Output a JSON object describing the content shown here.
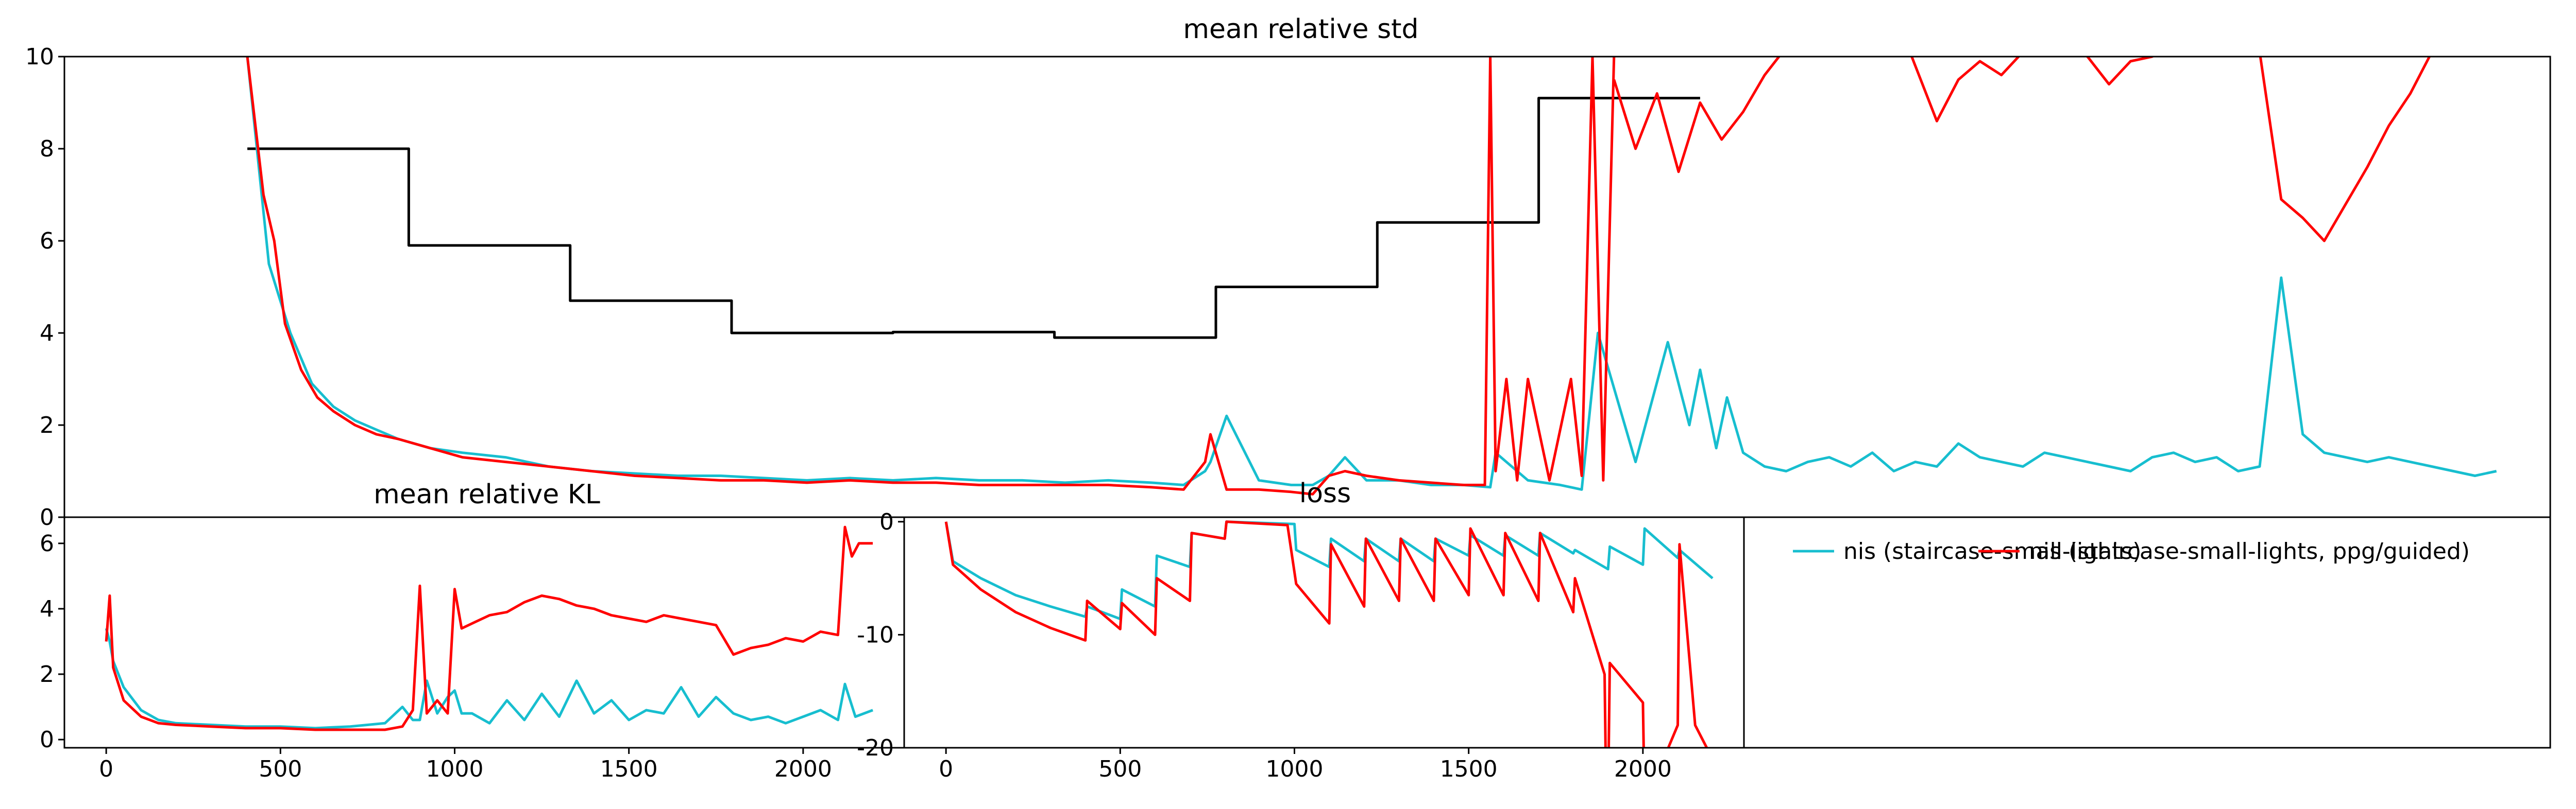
{
  "chart_data": [
    {
      "id": "top",
      "type": "line",
      "title": "mean relative std",
      "xlim": [
        -120,
        4500
      ],
      "ylim": [
        0,
        10
      ],
      "yticks": [
        0,
        2,
        4,
        6,
        8,
        10
      ],
      "xticks": [],
      "series": [
        {
          "color": "#000000",
          "step": true,
          "x": [
            220,
            520,
            520,
            820,
            820,
            1120,
            1120,
            1420,
            1420,
            1720,
            1720,
            2020,
            2020,
            2320,
            2320,
            2620,
            2620,
            2920
          ],
          "y": [
            8.0,
            8.0,
            5.9,
            5.9,
            4.7,
            4.7,
            4.0,
            4.0,
            4.02,
            4.02,
            3.9,
            3.9,
            5.0,
            5.0,
            6.4,
            6.4,
            9.1,
            9.1
          ]
        },
        {
          "color": "#17becf",
          "x": [
            220,
            260,
            300,
            340,
            380,
            420,
            460,
            500,
            560,
            620,
            700,
            780,
            860,
            940,
            1020,
            1100,
            1180,
            1260,
            1340,
            1420,
            1500,
            1580,
            1660,
            1740,
            1820,
            1900,
            1960,
            2000,
            2010,
            2040,
            2100,
            2160,
            2200,
            2230,
            2260,
            2300,
            2360,
            2420,
            2480,
            2530,
            2540,
            2600,
            2660,
            2700,
            2730,
            2800,
            2860,
            2900,
            2920,
            2950,
            2970,
            3000,
            3040,
            3080,
            3120,
            3160,
            3200,
            3240,
            3280,
            3320,
            3360,
            3400,
            3440,
            3480,
            3520,
            3560,
            3600,
            3640,
            3680,
            3720,
            3760,
            3800,
            3840,
            3880,
            3920,
            3960,
            4000,
            4040,
            4080,
            4120,
            4160,
            4200,
            4240,
            4280,
            4320,
            4360,
            4400
          ],
          "y": [
            10,
            5.5,
            4.0,
            2.9,
            2.4,
            2.1,
            1.9,
            1.7,
            1.5,
            1.4,
            1.3,
            1.1,
            1.0,
            0.95,
            0.9,
            0.9,
            0.85,
            0.8,
            0.85,
            0.8,
            0.85,
            0.8,
            0.8,
            0.75,
            0.8,
            0.75,
            0.7,
            1.0,
            1.2,
            2.2,
            0.8,
            0.7,
            0.7,
            0.9,
            1.3,
            0.8,
            0.8,
            0.7,
            0.7,
            0.65,
            1.4,
            0.8,
            0.7,
            0.6,
            4.0,
            1.2,
            3.8,
            2.0,
            3.2,
            1.5,
            2.6,
            1.4,
            1.1,
            1.0,
            1.2,
            1.3,
            1.1,
            1.4,
            1.0,
            1.2,
            1.1,
            1.6,
            1.3,
            1.2,
            1.1,
            1.4,
            1.3,
            1.2,
            1.1,
            1.0,
            1.3,
            1.4,
            1.2,
            1.3,
            1.0,
            1.1,
            5.2,
            1.8,
            1.4,
            1.3,
            1.2,
            1.3,
            1.2,
            1.1,
            1.0,
            0.9,
            1.0
          ]
        },
        {
          "color": "#ff0000",
          "x": [
            220,
            250,
            270,
            290,
            320,
            350,
            380,
            420,
            460,
            500,
            560,
            620,
            700,
            780,
            860,
            940,
            1020,
            1100,
            1180,
            1260,
            1340,
            1420,
            1500,
            1580,
            1660,
            1740,
            1820,
            1900,
            1960,
            2000,
            2010,
            2040,
            2100,
            2160,
            2200,
            2230,
            2260,
            2300,
            2360,
            2420,
            2480,
            2520,
            2530,
            2540,
            2560,
            2580,
            2600,
            2640,
            2680,
            2700,
            2720,
            2740,
            2760
          ],
          "y": [
            10,
            7.0,
            6.0,
            4.2,
            3.2,
            2.6,
            2.3,
            2.0,
            1.8,
            1.7,
            1.5,
            1.3,
            1.2,
            1.1,
            1.0,
            0.9,
            0.85,
            0.8,
            0.8,
            0.75,
            0.8,
            0.75,
            0.75,
            0.7,
            0.7,
            0.7,
            0.7,
            0.65,
            0.6,
            1.2,
            1.8,
            0.6,
            0.6,
            0.55,
            0.5,
            0.9,
            1.0,
            0.9,
            0.8,
            0.75,
            0.7,
            0.7,
            10,
            1.0,
            3.0,
            0.8,
            3.0,
            0.8,
            3.0,
            0.9,
            10,
            0.8,
            10
          ]
        },
        {
          "color": "#ff0000",
          "x": [
            2760,
            2800,
            2840,
            2880,
            2920,
            2960,
            3000,
            3040,
            3080,
            3120,
            3160,
            3200,
            3240,
            3280,
            3320,
            3360,
            3400,
            3440,
            3480,
            3520,
            3560,
            3600,
            3640,
            3680,
            3720,
            3760,
            3800,
            3840,
            3880,
            3920,
            3960,
            4000,
            4040,
            4080,
            4120,
            4160,
            4200,
            4240,
            4280
          ],
          "y": [
            9.5,
            8.0,
            9.2,
            7.5,
            9.0,
            8.2,
            8.8,
            9.6,
            10.2,
            10.4,
            10.6,
            10.8,
            11.0,
            11.0,
            9.8,
            8.6,
            9.5,
            9.9,
            9.6,
            10.1,
            10.3,
            10.2,
            10.0,
            9.4,
            9.9,
            10.0,
            10.2,
            10.4,
            10.6,
            10.6,
            10.1,
            6.9,
            6.5,
            6.0,
            6.8,
            7.6,
            8.5,
            9.2,
            10.1
          ]
        }
      ]
    },
    {
      "id": "kl",
      "type": "line",
      "title": "mean relative KL",
      "xlim": [
        -120,
        2290
      ],
      "ylim": [
        -0.25,
        6.8
      ],
      "yticks": [
        0,
        2,
        4,
        6
      ],
      "xticks": [
        0,
        500,
        1000,
        1500,
        2000
      ],
      "series": [
        {
          "color": "#17becf",
          "x": [
            0,
            10,
            20,
            50,
            100,
            150,
            200,
            300,
            400,
            500,
            600,
            700,
            800,
            850,
            880,
            900,
            920,
            950,
            980,
            1000,
            1020,
            1050,
            1100,
            1150,
            1200,
            1250,
            1300,
            1350,
            1400,
            1450,
            1500,
            1550,
            1600,
            1650,
            1700,
            1750,
            1800,
            1850,
            1900,
            1950,
            2000,
            2050,
            2100,
            2120,
            2150,
            2200
          ],
          "y": [
            3.4,
            3.0,
            2.4,
            1.6,
            0.9,
            0.6,
            0.5,
            0.45,
            0.4,
            0.4,
            0.35,
            0.4,
            0.5,
            1.0,
            0.6,
            0.6,
            1.8,
            0.8,
            1.3,
            1.5,
            0.8,
            0.8,
            0.5,
            1.2,
            0.6,
            1.4,
            0.7,
            1.8,
            0.8,
            1.2,
            0.6,
            0.9,
            0.8,
            1.6,
            0.7,
            1.3,
            0.8,
            0.6,
            0.7,
            0.5,
            0.7,
            0.9,
            0.6,
            1.7,
            0.7,
            0.9
          ]
        },
        {
          "color": "#ff0000",
          "x": [
            0,
            10,
            20,
            50,
            100,
            150,
            200,
            300,
            400,
            500,
            600,
            700,
            800,
            850,
            880,
            900,
            920,
            950,
            980,
            1000,
            1020,
            1060,
            1100,
            1150,
            1200,
            1250,
            1300,
            1350,
            1400,
            1450,
            1500,
            1550,
            1600,
            1650,
            1700,
            1750,
            1800,
            1850,
            1900,
            1950,
            2000,
            2050,
            2100,
            2120,
            2140,
            2160,
            2200
          ],
          "y": [
            3.0,
            4.4,
            2.2,
            1.2,
            0.7,
            0.5,
            0.45,
            0.4,
            0.35,
            0.35,
            0.3,
            0.3,
            0.3,
            0.4,
            0.9,
            4.7,
            0.8,
            1.2,
            0.8,
            4.6,
            3.4,
            3.6,
            3.8,
            3.9,
            4.2,
            4.4,
            4.3,
            4.1,
            4.0,
            3.8,
            3.7,
            3.6,
            3.8,
            3.7,
            3.6,
            3.5,
            2.6,
            2.8,
            2.9,
            3.1,
            3.0,
            3.3,
            3.2,
            6.5,
            5.6,
            6.0,
            6.0
          ]
        }
      ]
    },
    {
      "id": "loss",
      "type": "line",
      "title": "loss",
      "xlim": [
        -120,
        2290
      ],
      "ylim": [
        -20,
        0.4
      ],
      "yticks": [
        -20,
        -10,
        0
      ],
      "xticks": [
        0,
        500,
        1000,
        1500,
        2000
      ],
      "series": [
        {
          "color": "#17becf",
          "x": [
            0,
            20,
            100,
            200,
            300,
            400,
            405,
            500,
            505,
            600,
            605,
            700,
            705,
            800,
            805,
            1000,
            1005,
            1100,
            1105,
            1200,
            1205,
            1300,
            1305,
            1400,
            1405,
            1500,
            1505,
            1600,
            1605,
            1700,
            1705,
            1800,
            1805,
            1900,
            1905,
            2000,
            2005,
            2100,
            2105,
            2200
          ],
          "y": [
            0,
            -3.5,
            -5,
            -6.5,
            -7.5,
            -8.4,
            -7.5,
            -8.6,
            -6.0,
            -7.5,
            -3.0,
            -4.0,
            -1.0,
            -1.5,
            0,
            -0.2,
            -2.5,
            -4.0,
            -1.5,
            -3.5,
            -1.5,
            -3.5,
            -1.5,
            -3.5,
            -1.5,
            -3.0,
            -1.2,
            -3.0,
            -1.2,
            -3.0,
            -1.0,
            -2.8,
            -2.5,
            -4.2,
            -2.2,
            -3.8,
            -0.6,
            -3.2,
            -2.5,
            -5.0
          ]
        },
        {
          "color": "#ff0000",
          "x": [
            0,
            20,
            100,
            200,
            300,
            400,
            405,
            500,
            505,
            600,
            605,
            700,
            705,
            800,
            805,
            980,
            1005,
            1100,
            1105,
            1200,
            1205,
            1300,
            1305,
            1400,
            1405,
            1500,
            1505,
            1600,
            1605,
            1700,
            1705,
            1800,
            1805,
            1890,
            1895,
            1900,
            1905,
            2000,
            2005,
            2100,
            2105,
            2150,
            2200
          ],
          "y": [
            0,
            -3.8,
            -6,
            -8,
            -9.4,
            -10.5,
            -7.0,
            -9.5,
            -7.2,
            -10.0,
            -5.0,
            -7.0,
            -1.0,
            -1.5,
            0,
            -0.3,
            -5.5,
            -9.0,
            -2.0,
            -7.5,
            -1.5,
            -7.0,
            -1.5,
            -7.0,
            -1.5,
            -6.5,
            -0.6,
            -6.5,
            -1.0,
            -7.0,
            -1.0,
            -8.0,
            -5.0,
            -13.5,
            -25,
            -25,
            -12.5,
            -16,
            -25,
            -18,
            -2.0,
            -18,
            -21
          ]
        }
      ]
    }
  ],
  "legend": {
    "placement": "upper-left of the empty fourth panel",
    "entries": [
      {
        "label": "nis (staircase-small-lights)",
        "color": "#17becf"
      },
      {
        "label": "nis (staircase-small-lights, ppg/guided)",
        "color": "#ff0000"
      }
    ]
  }
}
